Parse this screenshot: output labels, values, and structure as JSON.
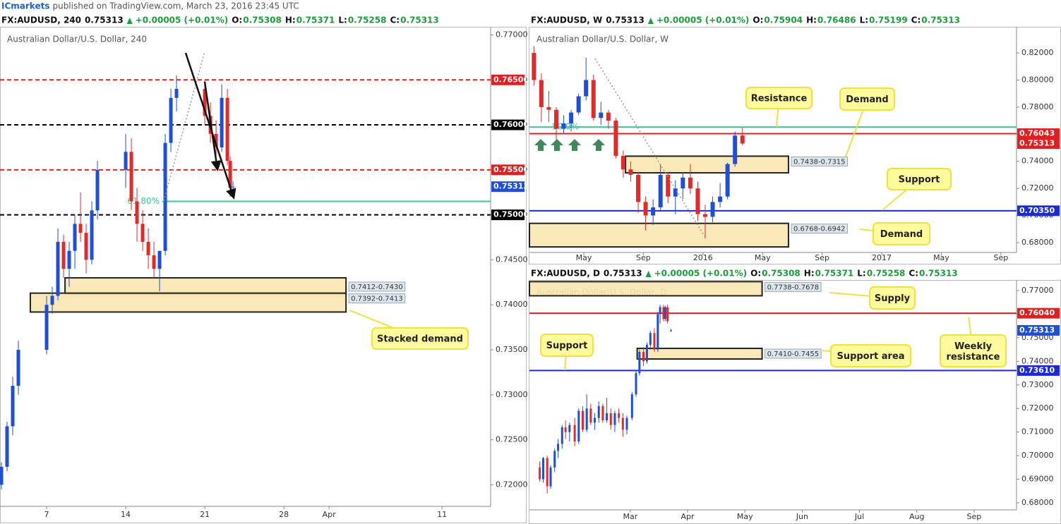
{
  "header": {
    "author": "ICmarkets",
    "text": "published on TradingView.com, March 23, 2016 23:45 UTC"
  },
  "chart_data": [
    {
      "type": "candlestick",
      "title": "Australian Dollar/U.S. Dollar, 240",
      "legend": {
        "symbol": "FX:AUDUSD, 240",
        "last": "0.75313",
        "change": "+0.00005 (+0.01%)",
        "ohlc": [
          {
            "key": "O:",
            "value": "0.75308"
          },
          {
            "key": "H:",
            "value": "0.75371"
          },
          {
            "key": "L:",
            "value": "0.75258"
          },
          {
            "key": "C:",
            "value": "0.75313"
          }
        ]
      },
      "up_color": "#1e4fd6",
      "down_color": "#e02b2b",
      "grid": false,
      "xlim": [
        2.875,
        46.3
      ],
      "ylim": [
        0.7176,
        0.7709
      ],
      "xticks": [
        7,
        14,
        21,
        28,
        {
          "value": 32,
          "label": "Apr"
        },
        {
          "value": 42,
          "label": "11"
        }
      ],
      "yticks": [
        {
          "value": 0.72,
          "label": "0.72000"
        },
        {
          "value": 0.725,
          "label": "0.72500"
        },
        {
          "value": 0.73,
          "label": "0.73000"
        },
        {
          "value": 0.735,
          "label": "0.73500"
        },
        {
          "value": 0.74,
          "label": "0.74000"
        },
        {
          "value": 0.745,
          "label": "0.74500"
        },
        {
          "value": 0.75,
          "label": "0.75000"
        },
        {
          "value": 0.755,
          "label": "0.75500"
        },
        {
          "value": 0.76,
          "label": "0.76000"
        },
        {
          "value": 0.765,
          "label": "0.76500"
        },
        {
          "value": 0.77,
          "label": "0.77000"
        }
      ],
      "x": [
        3,
        3.5,
        4,
        4.5,
        7,
        7.5,
        8,
        8.5,
        9,
        9.5,
        10,
        10.5,
        11,
        11.5,
        14,
        14.5,
        15,
        15.5,
        16,
        16.5,
        17,
        17.5,
        18,
        18.5,
        21,
        21.5,
        22,
        22.5,
        23,
        23.25,
        23.5
      ],
      "open": [
        0.72,
        0.722,
        0.7265,
        0.731,
        0.735,
        0.74,
        0.741,
        0.747,
        0.744,
        0.746,
        0.749,
        0.748,
        0.745,
        0.7505,
        0.755,
        0.757,
        0.7515,
        0.749,
        0.747,
        0.7455,
        0.744,
        0.746,
        0.758,
        0.763,
        0.764,
        0.761,
        0.759,
        0.7575,
        0.763,
        0.756,
        0.75308
      ],
      "high": [
        0.7225,
        0.727,
        0.732,
        0.736,
        0.741,
        0.742,
        0.7485,
        0.7478,
        0.747,
        0.75,
        0.7525,
        0.749,
        0.7515,
        0.756,
        0.759,
        0.7585,
        0.753,
        0.7505,
        0.7485,
        0.747,
        0.746,
        0.759,
        0.764,
        0.7655,
        0.765,
        0.7625,
        0.7605,
        0.7645,
        0.764,
        0.7565,
        0.75371
      ],
      "low": [
        0.7195,
        0.7215,
        0.7255,
        0.73,
        0.7345,
        0.739,
        0.7405,
        0.743,
        0.742,
        0.744,
        0.747,
        0.7435,
        0.7445,
        0.7495,
        0.753,
        0.7505,
        0.747,
        0.746,
        0.744,
        0.743,
        0.7415,
        0.7455,
        0.757,
        0.7615,
        0.76,
        0.758,
        0.756,
        0.757,
        0.7555,
        0.752,
        0.75258
      ],
      "close": [
        0.722,
        0.7265,
        0.731,
        0.735,
        0.74,
        0.741,
        0.747,
        0.744,
        0.746,
        0.749,
        0.748,
        0.745,
        0.7505,
        0.755,
        0.757,
        0.7515,
        0.749,
        0.747,
        0.7455,
        0.744,
        0.746,
        0.758,
        0.763,
        0.764,
        0.761,
        0.759,
        0.7575,
        0.763,
        0.756,
        0.753,
        0.75313
      ],
      "levels": [
        {
          "value": 0.765,
          "label": "0.76500",
          "color": "#e02020",
          "line": "dashed"
        },
        {
          "value": 0.76,
          "label": "0.76000",
          "color": "#000000",
          "line": "dashed"
        },
        {
          "value": 0.755,
          "label": "0.75500",
          "color": "#e02020",
          "line": "dashed"
        },
        {
          "value": 0.75313,
          "label": "0.75313",
          "color": "#1e4fd6",
          "line": "none"
        },
        {
          "value": 0.75,
          "label": "0.75000",
          "color": "#000000",
          "line": "dashed"
        }
      ],
      "fib": {
        "value": 0.7515,
        "label": "61.80%",
        "x0": 17.25,
        "color": "#3cc79a"
      },
      "zones": [
        {
          "low": 0.7412,
          "high": 0.743,
          "label": "0.7412-0.7430",
          "x0": 8.63,
          "x1": 33.5
        },
        {
          "low": 0.7392,
          "high": 0.7413,
          "label": "0.7392-0.7413",
          "x0": 5.56,
          "x1": 33.5
        }
      ],
      "annotations": [
        "Stacked demand"
      ]
    },
    {
      "type": "candlestick",
      "title": "Australian Dollar/U.S. Dollar, W",
      "legend": {
        "symbol": "FX:AUDUSD, W",
        "last": "0.75313",
        "change": "+0.00005 (+0.01%)",
        "ohlc": [
          {
            "key": "O:",
            "value": "0.75904"
          },
          {
            "key": "H:",
            "value": "0.76486"
          },
          {
            "key": "L:",
            "value": "0.75199"
          },
          {
            "key": "C:",
            "value": "0.75313"
          }
        ]
      },
      "up_color": "#1e4fd6",
      "down_color": "#e02b2b",
      "grid": false,
      "xlim": [
        0.35,
        33.05
      ],
      "ylim": [
        0.6727,
        0.8393
      ],
      "xticks": [
        {
          "value": 4,
          "label": "May"
        },
        {
          "value": 8,
          "label": "Sep"
        },
        {
          "value": 12,
          "label": "2016"
        },
        {
          "value": 16,
          "label": "May"
        },
        {
          "value": 20,
          "label": "Sep"
        },
        {
          "value": 24,
          "label": "2017"
        },
        {
          "value": 28,
          "label": "May"
        },
        {
          "value": 32,
          "label": "Sep"
        }
      ],
      "yticks": [
        {
          "value": 0.68,
          "label": "0.68000"
        },
        {
          "value": 0.7,
          "label": "0.70000"
        },
        {
          "value": 0.72,
          "label": "0.72000"
        },
        {
          "value": 0.74,
          "label": "0.74000"
        },
        {
          "value": 0.76,
          "label": "0.76000"
        },
        {
          "value": 0.78,
          "label": "0.78000"
        },
        {
          "value": 0.8,
          "label": "0.80000"
        },
        {
          "value": 0.82,
          "label": "0.82000"
        }
      ],
      "x": [
        0.65,
        1.15,
        1.65,
        2.15,
        2.65,
        3.15,
        3.65,
        4.15,
        4.65,
        5.15,
        5.65,
        6.15,
        6.65,
        7.15,
        7.65,
        8.15,
        8.65,
        9.15,
        9.65,
        10.15,
        10.65,
        11.15,
        11.65,
        12.15,
        12.65,
        13.15,
        13.65,
        14.15,
        14.65
      ],
      "open": [
        0.82,
        0.8,
        0.78,
        0.778,
        0.764,
        0.768,
        0.776,
        0.788,
        0.8,
        0.772,
        0.776,
        0.77,
        0.744,
        0.734,
        0.73,
        0.71,
        0.7,
        0.706,
        0.73,
        0.714,
        0.72,
        0.728,
        0.72,
        0.701,
        0.699,
        0.71,
        0.714,
        0.738,
        0.75904
      ],
      "high": [
        0.825,
        0.805,
        0.792,
        0.78,
        0.774,
        0.778,
        0.79,
        0.8165,
        0.804,
        0.784,
        0.778,
        0.772,
        0.748,
        0.74,
        0.732,
        0.714,
        0.712,
        0.738,
        0.732,
        0.726,
        0.732,
        0.738,
        0.725,
        0.708,
        0.714,
        0.724,
        0.739,
        0.762,
        0.76486
      ],
      "low": [
        0.796,
        0.769,
        0.769,
        0.756,
        0.76,
        0.762,
        0.774,
        0.785,
        0.77,
        0.767,
        0.764,
        0.742,
        0.728,
        0.725,
        0.702,
        0.689,
        0.693,
        0.704,
        0.709,
        0.701,
        0.712,
        0.716,
        0.696,
        0.683,
        0.695,
        0.706,
        0.712,
        0.736,
        0.75199
      ],
      "close": [
        0.8,
        0.78,
        0.778,
        0.764,
        0.768,
        0.776,
        0.788,
        0.8,
        0.772,
        0.776,
        0.77,
        0.744,
        0.734,
        0.73,
        0.71,
        0.7,
        0.706,
        0.73,
        0.714,
        0.72,
        0.728,
        0.72,
        0.701,
        0.699,
        0.71,
        0.714,
        0.738,
        0.759,
        0.75313
      ],
      "levels": [
        {
          "value": 0.76043,
          "label": "0.76043",
          "color": "#e02020",
          "line": "solid"
        },
        {
          "value": 0.75313,
          "label": "0.75313",
          "color": "#e02020",
          "line": "none"
        },
        {
          "value": 0.7035,
          "label": "0.70350",
          "color": "#1c2bd1",
          "line": "solid"
        }
      ],
      "fib": {
        "value": 0.7653,
        "label": "50.0%",
        "x0": 0.35,
        "color": "#3cc79a"
      },
      "zones": [
        {
          "low": 0.7315,
          "high": 0.7438,
          "label": "0.7438-0.7315",
          "x0": 6.8,
          "x1": 17.74
        },
        {
          "low": 0.6768,
          "high": 0.6942,
          "label": "0.6768-0.6942",
          "x0": 0.35,
          "x1": 17.74
        }
      ],
      "annotations": [
        "Resistance",
        "Demand",
        "Support",
        "Demand"
      ]
    },
    {
      "type": "candlestick",
      "title": "Australian Dollar/U.S. Dollar, D",
      "legend": {
        "symbol": "FX:AUDUSD, D",
        "last": "0.75313",
        "change": "+0.00005 (+0.01%)",
        "ohlc": [
          {
            "key": "O:",
            "value": "0.75308"
          },
          {
            "key": "H:",
            "value": "0.75371"
          },
          {
            "key": "L:",
            "value": "0.75258"
          },
          {
            "key": "C:",
            "value": "0.75313"
          }
        ]
      },
      "up_color": "#1e4fd6",
      "down_color": "#e02b2b",
      "grid": false,
      "xlim": [
        1.24,
        9.74
      ],
      "ylim": [
        0.677,
        0.7745
      ],
      "xticks": [
        {
          "value": 3,
          "label": "Mar"
        },
        {
          "value": 4,
          "label": "Apr"
        },
        {
          "value": 5,
          "label": "May"
        },
        {
          "value": 6,
          "label": "Jun"
        },
        {
          "value": 7,
          "label": "Jul"
        },
        {
          "value": 8,
          "label": "Aug"
        },
        {
          "value": 9,
          "label": "Sep"
        }
      ],
      "yticks": [
        {
          "value": 0.68,
          "label": "0.68000"
        },
        {
          "value": 0.69,
          "label": "0.69000"
        },
        {
          "value": 0.7,
          "label": "0.70000"
        },
        {
          "value": 0.71,
          "label": "0.71000"
        },
        {
          "value": 0.72,
          "label": "0.72000"
        },
        {
          "value": 0.73,
          "label": "0.73000"
        },
        {
          "value": 0.74,
          "label": "0.74000"
        },
        {
          "value": 0.75,
          "label": "0.75000"
        },
        {
          "value": 0.76,
          "label": "0.76000"
        },
        {
          "value": 0.77,
          "label": "0.77000"
        }
      ],
      "x": [
        1.42,
        1.48,
        1.55,
        1.61,
        1.68,
        1.74,
        1.81,
        1.87,
        1.94,
        2.03,
        2.1,
        2.17,
        2.24,
        2.31,
        2.38,
        2.45,
        2.52,
        2.59,
        2.66,
        2.73,
        2.8,
        2.87,
        2.94,
        3.03,
        3.1,
        3.16,
        3.23,
        3.29,
        3.35,
        3.42,
        3.48,
        3.52,
        3.58,
        3.61,
        3.65,
        3.71
      ],
      "open": [
        0.695,
        0.69,
        0.699,
        0.687,
        0.695,
        0.702,
        0.705,
        0.712,
        0.71,
        0.713,
        0.706,
        0.719,
        0.711,
        0.72,
        0.714,
        0.716,
        0.721,
        0.715,
        0.718,
        0.713,
        0.718,
        0.716,
        0.711,
        0.716,
        0.726,
        0.735,
        0.744,
        0.74,
        0.747,
        0.752,
        0.745,
        0.76,
        0.763,
        0.758,
        0.763,
        0.75308
      ],
      "high": [
        0.6975,
        0.6995,
        0.7,
        0.696,
        0.703,
        0.707,
        0.713,
        0.715,
        0.714,
        0.716,
        0.72,
        0.721,
        0.726,
        0.722,
        0.718,
        0.723,
        0.722,
        0.7245,
        0.72,
        0.719,
        0.72,
        0.718,
        0.717,
        0.727,
        0.736,
        0.745,
        0.746,
        0.748,
        0.753,
        0.754,
        0.761,
        0.764,
        0.764,
        0.7635,
        0.764,
        0.75371
      ],
      "low": [
        0.689,
        0.6885,
        0.684,
        0.686,
        0.693,
        0.699,
        0.703,
        0.707,
        0.706,
        0.704,
        0.705,
        0.71,
        0.71,
        0.713,
        0.711,
        0.714,
        0.714,
        0.714,
        0.711,
        0.71,
        0.714,
        0.708,
        0.709,
        0.715,
        0.725,
        0.734,
        0.738,
        0.739,
        0.745,
        0.744,
        0.744,
        0.756,
        0.757,
        0.757,
        0.756,
        0.75258
      ],
      "close": [
        0.69,
        0.699,
        0.687,
        0.695,
        0.702,
        0.705,
        0.712,
        0.71,
        0.713,
        0.706,
        0.719,
        0.711,
        0.72,
        0.714,
        0.716,
        0.721,
        0.715,
        0.718,
        0.713,
        0.718,
        0.716,
        0.711,
        0.716,
        0.726,
        0.735,
        0.744,
        0.74,
        0.747,
        0.752,
        0.745,
        0.76,
        0.763,
        0.758,
        0.763,
        0.757,
        0.75313
      ],
      "levels": [
        {
          "value": 0.7604,
          "label": "0.76040",
          "color": "#e02020",
          "line": "solid"
        },
        {
          "value": 0.75313,
          "label": "0.75313",
          "color": "#1e4fd6",
          "line": "none"
        },
        {
          "value": 0.7361,
          "label": "0.73610",
          "color": "#1c2bd1",
          "line": "solid"
        }
      ],
      "zones": [
        {
          "low": 0.7678,
          "high": 0.7738,
          "label": "0.7738-0.7678",
          "x0": 1.24,
          "x1": 5.3
        },
        {
          "low": 0.741,
          "high": 0.7455,
          "label": "0.7410-0.7455",
          "x0": 3.12,
          "x1": 5.3
        }
      ],
      "annotations": [
        "Supply",
        "Support area",
        "Weekly resistance",
        "Support"
      ]
    }
  ]
}
